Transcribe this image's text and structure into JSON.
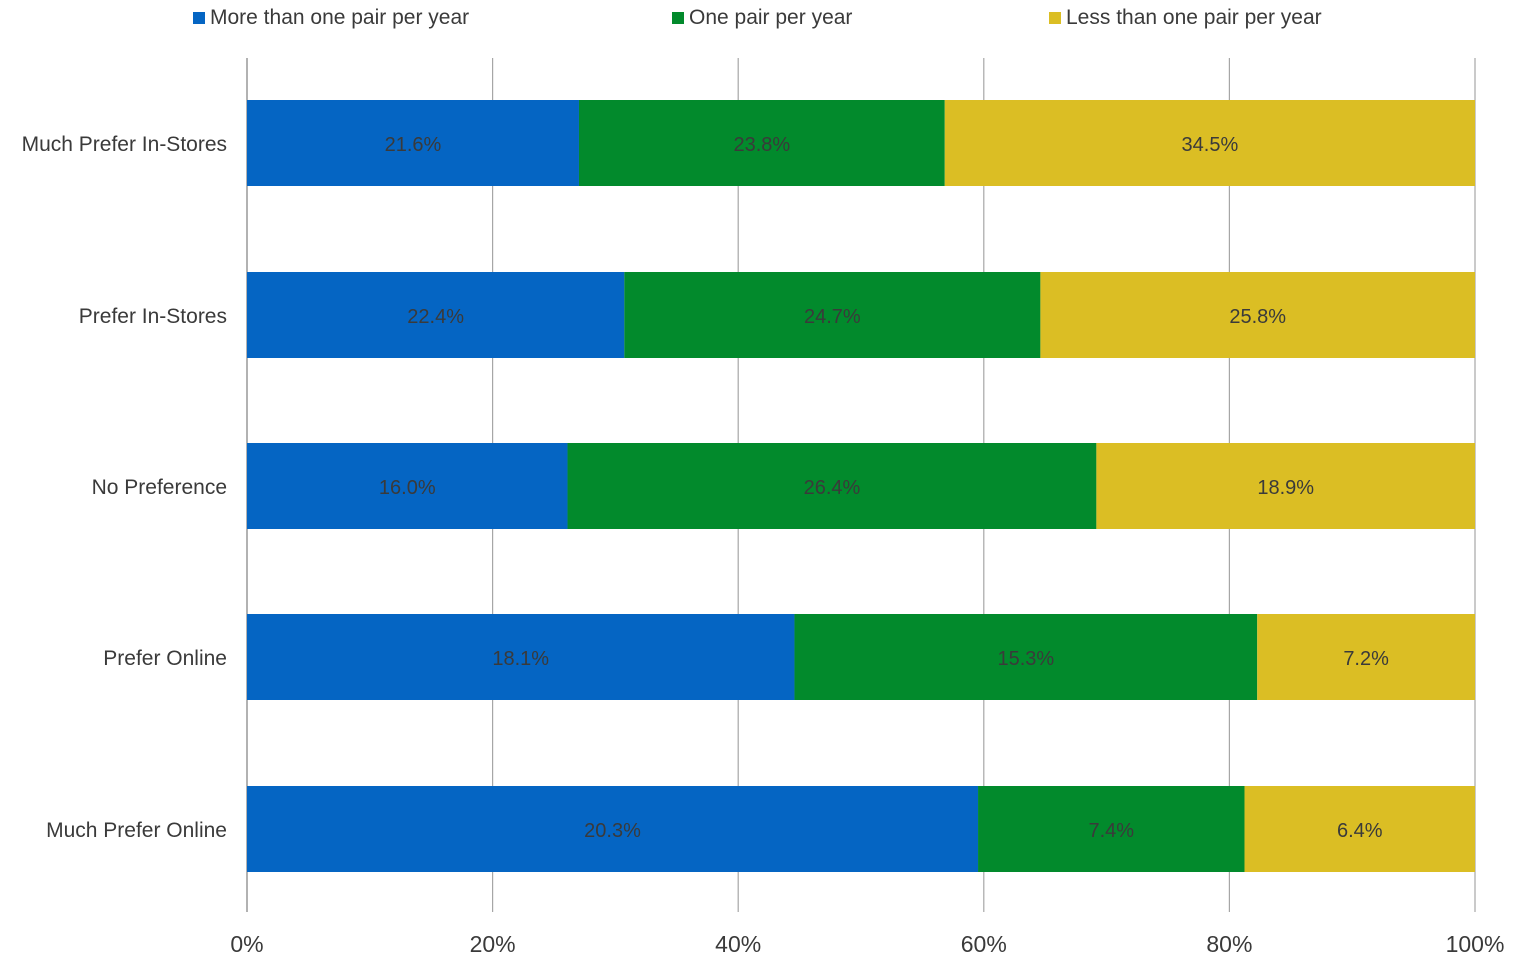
{
  "chart_data": {
    "type": "bar",
    "orientation": "horizontal",
    "stacked": "percent",
    "categories": [
      "Much Prefer In-Stores",
      "Prefer In-Stores",
      "No Preference",
      "Prefer Online",
      "Much Prefer Online"
    ],
    "series": [
      {
        "name": "More than one pair per year",
        "color": "#0565c3",
        "values": [
          21.6,
          22.4,
          16.0,
          18.1,
          20.3
        ],
        "labels": [
          "21.6%",
          "22.4%",
          "16.0%",
          "18.1%",
          "20.3%"
        ]
      },
      {
        "name": "One pair per year",
        "color": "#028a2c",
        "values": [
          23.8,
          24.7,
          26.4,
          15.3,
          7.4
        ],
        "labels": [
          "23.8%",
          "24.7%",
          "26.4%",
          "15.3%",
          "7.4%"
        ]
      },
      {
        "name": "Less than one pair per year",
        "color": "#dbbe24",
        "values": [
          34.5,
          25.8,
          18.9,
          7.2,
          6.4
        ],
        "labels": [
          "34.5%",
          "25.8%",
          "18.9%",
          "7.2%",
          "6.4%"
        ]
      }
    ],
    "x_ticks": [
      "0%",
      "20%",
      "40%",
      "60%",
      "80%",
      "100%"
    ],
    "xlim": [
      0,
      100
    ],
    "grid": true,
    "legend_position": "top"
  }
}
